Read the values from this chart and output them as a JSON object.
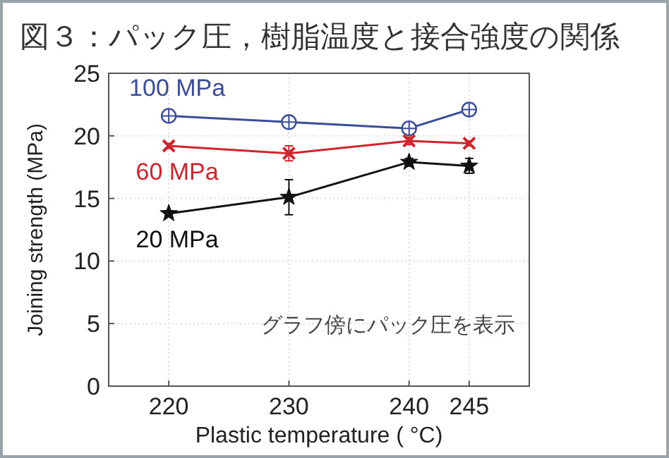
{
  "chart_data": {
    "type": "line",
    "title": "図３：パック圧，樹脂温度と接合強度の関係",
    "xlabel": "Plastic temperature ( °C)",
    "ylabel": "Joining strength (MPa)",
    "x": [
      220,
      230,
      240,
      245
    ],
    "xlim": [
      215,
      250
    ],
    "xticks": [
      220,
      230,
      240,
      245
    ],
    "ylim": [
      0,
      25
    ],
    "yticks": [
      0,
      5,
      10,
      15,
      20,
      25
    ],
    "grid": true,
    "series": [
      {
        "name": "100 MPa",
        "color": "#3b4c9b",
        "marker": "circle",
        "values": [
          21.6,
          21.1,
          20.6,
          22.1
        ],
        "errors": [
          0.2,
          0.2,
          0.2,
          0.2
        ]
      },
      {
        "name": "60 MPa",
        "color": "#d0242c",
        "marker": "cross",
        "values": [
          19.2,
          18.6,
          19.6,
          19.4
        ],
        "errors": [
          0.2,
          0.6,
          0.3,
          0.2
        ]
      },
      {
        "name": "20 MPa",
        "color": "#111111",
        "marker": "star",
        "values": [
          13.8,
          15.1,
          17.9,
          17.6
        ],
        "errors": [
          0.2,
          1.4,
          0.3,
          0.6
        ]
      }
    ],
    "annotations": [
      "グラフ傍にパック圧を表示"
    ]
  }
}
